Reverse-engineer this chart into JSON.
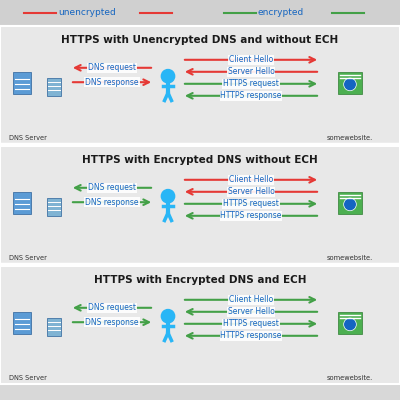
{
  "bg_color": "#d8d8d8",
  "panel_bg": "#e0e0e0",
  "white": "#ffffff",
  "red": "#e53935",
  "green": "#43a047",
  "blue_person": "#29b6f6",
  "blue_text": "#1565c0",
  "dark_text": "#212121",
  "panels": [
    {
      "title": "HTTPS with Unencrypted DNS and without ECH",
      "dns_req_color": "red",
      "dns_resp_color": "red",
      "client_hello_color": "red",
      "server_hello_color": "red",
      "https_req_color": "green",
      "https_resp_color": "green"
    },
    {
      "title": "HTTPS with Encrypted DNS without ECH",
      "dns_req_color": "green",
      "dns_resp_color": "green",
      "client_hello_color": "red",
      "server_hello_color": "red",
      "https_req_color": "green",
      "https_resp_color": "green"
    },
    {
      "title": "HTTPS with Encrypted DNS and ECH",
      "dns_req_color": "green",
      "dns_resp_color": "green",
      "client_hello_color": "green",
      "server_hello_color": "green",
      "https_req_color": "green",
      "https_resp_color": "green"
    }
  ],
  "legend_unencrypted": "unencrypted",
  "legend_encrypted": "encrypted",
  "dns_server_label": "DNS Server",
  "somewebsite_label": "somewebsite.",
  "dns_request_label": "DNS request",
  "dns_response_label": "DNS response",
  "client_hello_label": "Client Hello",
  "server_hello_label": "Server Hello",
  "https_request_label": "HTTPS request",
  "https_response_label": "HTTPS response"
}
